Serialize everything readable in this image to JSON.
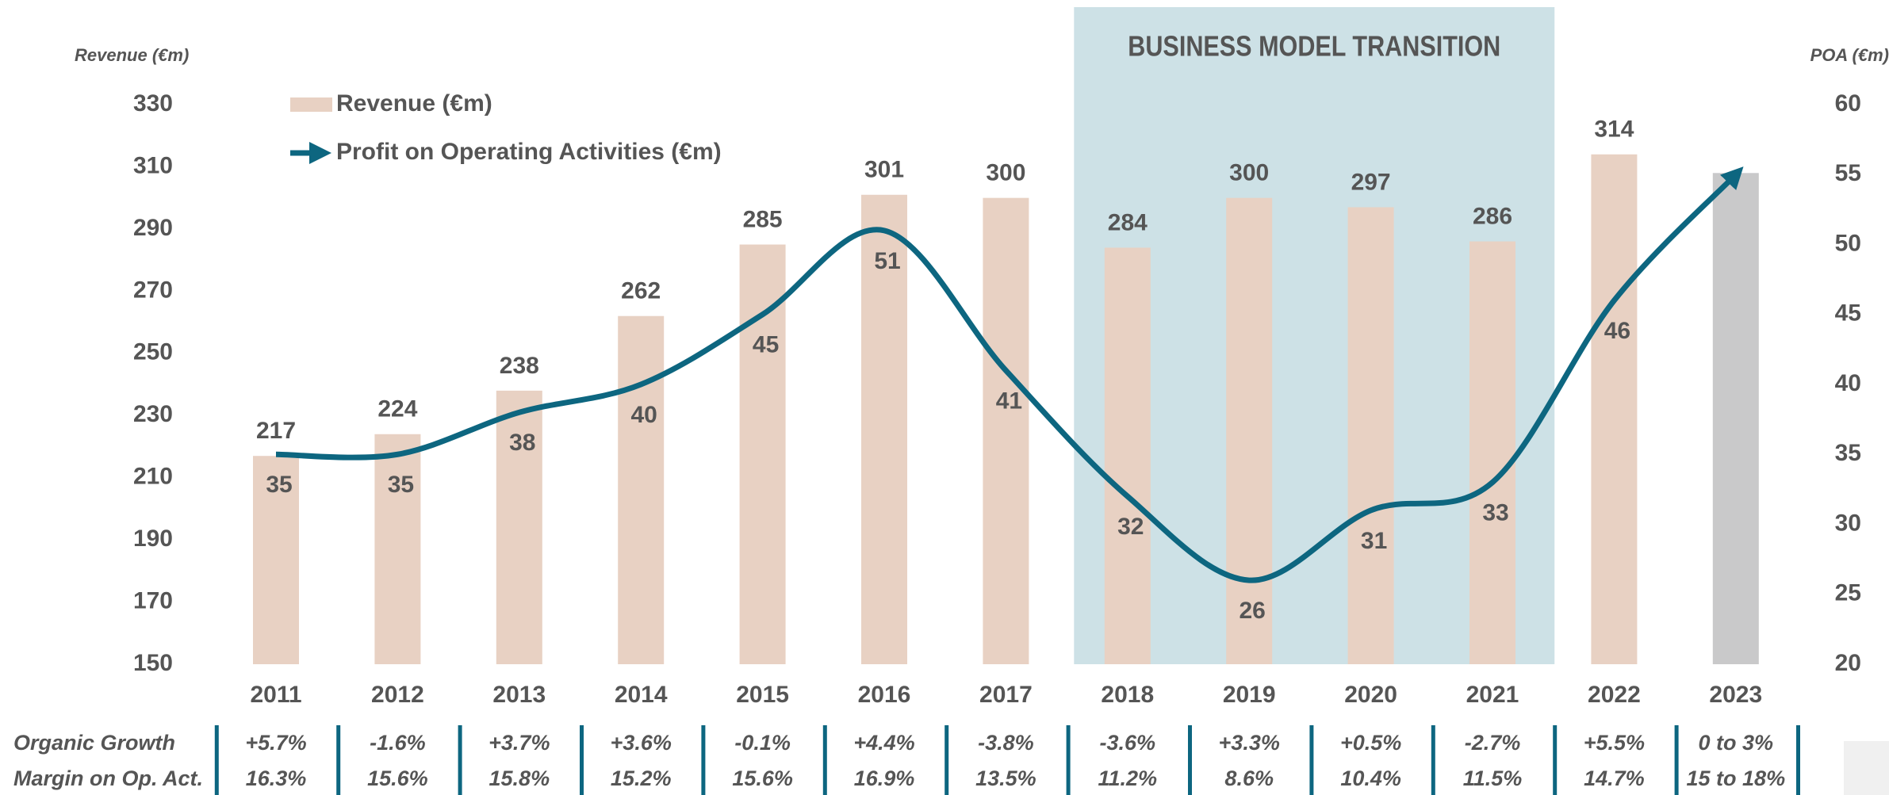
{
  "chart_data": {
    "type": "bar_line",
    "y_label": "Revenue (€m)",
    "y2_label": "POA (€m)",
    "categories": [
      "2011",
      "2012",
      "2013",
      "2014",
      "2015",
      "2016",
      "2017",
      "2018",
      "2019",
      "2020",
      "2021",
      "2022",
      "2023"
    ],
    "ylim": [
      150,
      330
    ],
    "yticks": [
      150,
      170,
      190,
      210,
      230,
      250,
      270,
      290,
      310,
      330
    ],
    "y2lim": [
      20,
      60
    ],
    "y2ticks": [
      20,
      25,
      30,
      35,
      40,
      45,
      50,
      55,
      60
    ],
    "legend": "top-left",
    "series": [
      {
        "name": "Revenue (€m)",
        "type": "bar",
        "colors": [
          "#e8d1c3",
          "#e8d1c3",
          "#e8d1c3",
          "#e8d1c3",
          "#e8d1c3",
          "#e8d1c3",
          "#e8d1c3",
          "#e8d1c3",
          "#e8d1c3",
          "#e8d1c3",
          "#e8d1c3",
          "#e8d1c3",
          "#c9c9ca"
        ],
        "values": [
          217,
          224,
          238,
          262,
          285,
          301,
          300,
          284,
          300,
          297,
          286,
          314,
          308
        ],
        "value_labels": [
          "217",
          "224",
          "238",
          "262",
          "285",
          "301",
          "300",
          "284",
          "300",
          "297",
          "286",
          "314",
          null
        ]
      },
      {
        "name": "Profit on Operating Activities (€m)",
        "type": "line",
        "axis": "y2",
        "color": "#0d6680",
        "values": [
          35,
          35,
          38,
          40,
          45,
          51,
          41,
          32,
          26,
          31,
          33,
          46,
          55
        ],
        "value_labels": [
          "35",
          "35",
          "38",
          "40",
          "45",
          "51",
          "41",
          "32",
          "26",
          "31",
          "33",
          "46",
          null
        ]
      }
    ],
    "shaded_region": {
      "from": "2018",
      "to": "2021",
      "label": "BUSINESS MODEL TRANSITION",
      "color": "#cde1e6"
    },
    "table": {
      "separator_color": "#0d6680",
      "rows": [
        {
          "label": "Organic Growth",
          "values": [
            "+5.7%",
            "-1.6%",
            "+3.7%",
            "+3.6%",
            "-0.1%",
            "+4.4%",
            "-3.8%",
            "-3.6%",
            "+3.3%",
            "+0.5%",
            "-2.7%",
            "+5.5%",
            "0 to 3%"
          ]
        },
        {
          "label": "Margin on Op. Act.",
          "values": [
            "16.3%",
            "15.6%",
            "15.8%",
            "15.2%",
            "15.6%",
            "16.9%",
            "13.5%",
            "11.2%",
            "8.6%",
            "10.4%",
            "11.5%",
            "14.7%",
            "15 to 18%"
          ]
        }
      ]
    }
  }
}
